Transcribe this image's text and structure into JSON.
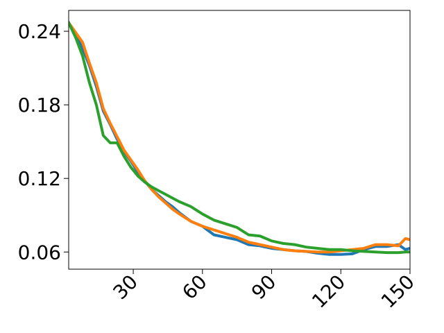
{
  "chart_data": {
    "type": "line",
    "x": [
      2,
      5,
      8,
      11,
      14,
      17,
      20,
      23,
      26,
      29,
      32,
      35,
      38,
      41,
      44,
      47,
      50,
      55,
      60,
      65,
      70,
      75,
      80,
      85,
      90,
      95,
      100,
      105,
      110,
      115,
      120,
      125,
      130,
      135,
      140,
      145,
      148,
      150
    ],
    "series": [
      {
        "color": "#1f77b4",
        "values": [
          0.247,
          0.237,
          0.226,
          0.212,
          0.195,
          0.175,
          0.164,
          0.152,
          0.142,
          0.134,
          0.125,
          0.118,
          0.111,
          0.106,
          0.101,
          0.097,
          0.092,
          0.085,
          0.081,
          0.074,
          0.072,
          0.07,
          0.066,
          0.065,
          0.063,
          0.062,
          0.061,
          0.0605,
          0.059,
          0.058,
          0.058,
          0.0585,
          0.062,
          0.0645,
          0.0645,
          0.066,
          0.062,
          0.063
        ]
      },
      {
        "color": "#ff7f0e",
        "values": [
          0.247,
          0.239,
          0.231,
          0.214,
          0.198,
          0.177,
          0.165,
          0.154,
          0.143,
          0.135,
          0.127,
          0.118,
          0.111,
          0.105,
          0.1,
          0.095,
          0.091,
          0.085,
          0.081,
          0.078,
          0.075,
          0.072,
          0.068,
          0.066,
          0.064,
          0.062,
          0.061,
          0.0605,
          0.06,
          0.06,
          0.061,
          0.062,
          0.063,
          0.066,
          0.066,
          0.065,
          0.071,
          0.07
        ]
      },
      {
        "color": "#2ca02c",
        "values": [
          0.247,
          0.235,
          0.22,
          0.198,
          0.18,
          0.155,
          0.149,
          0.149,
          0.138,
          0.129,
          0.122,
          0.117,
          0.113,
          0.11,
          0.107,
          0.104,
          0.101,
          0.097,
          0.091,
          0.086,
          0.083,
          0.08,
          0.074,
          0.073,
          0.069,
          0.067,
          0.066,
          0.064,
          0.063,
          0.062,
          0.062,
          0.061,
          0.0605,
          0.06,
          0.0595,
          0.0595,
          0.06,
          0.06
        ]
      }
    ],
    "xlim": [
      2,
      150
    ],
    "ylim": [
      0.046,
      0.257
    ],
    "xticks": [
      30,
      60,
      90,
      120,
      150
    ],
    "yticks": [
      0.06,
      0.12,
      0.18,
      0.24
    ]
  }
}
